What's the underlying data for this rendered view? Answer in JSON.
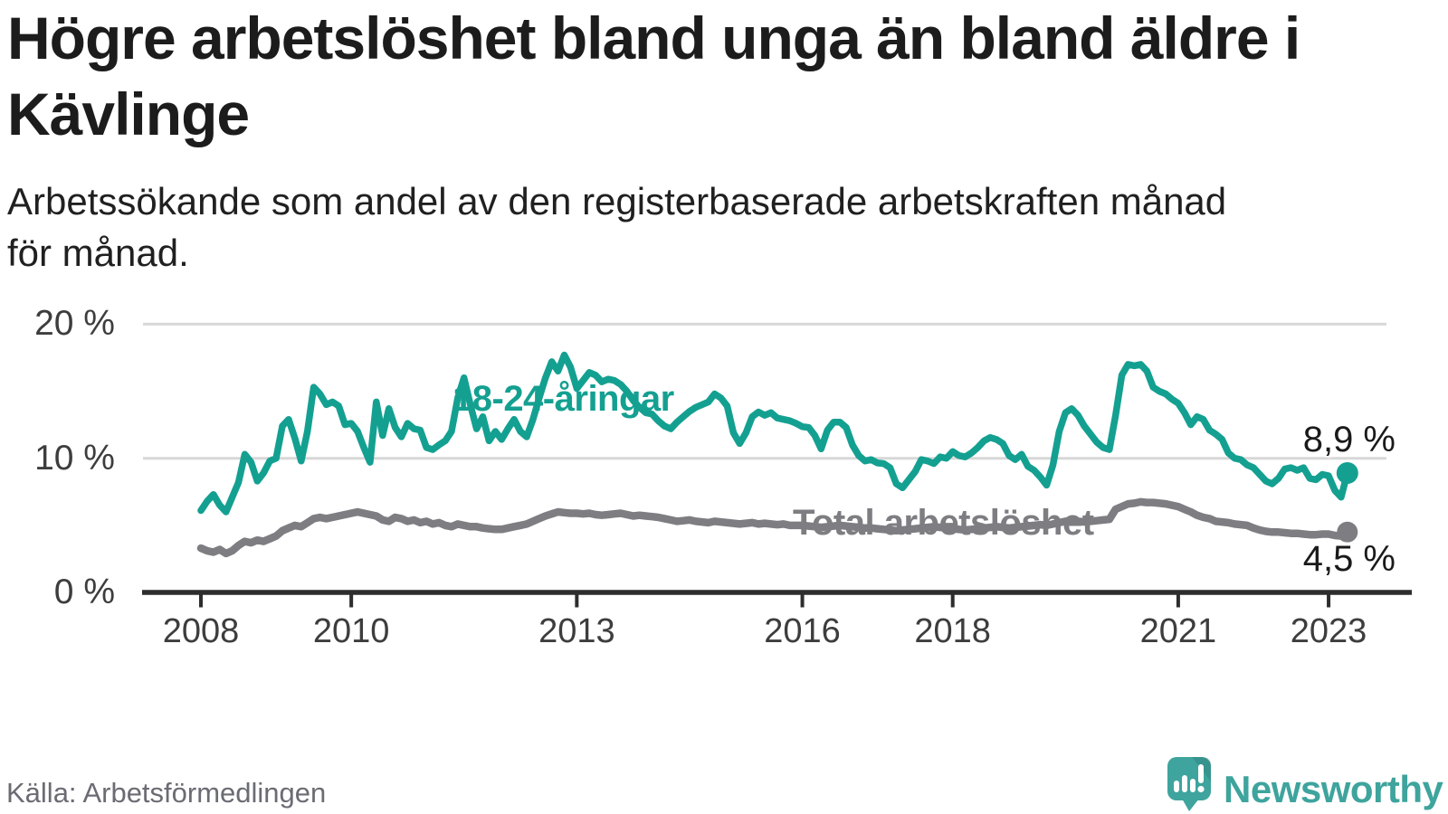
{
  "header": {
    "title_line1": "Högre arbetslöshet bland unga än bland äldre i",
    "title_line2": "Kävlinge",
    "subtitle_line1": "Arbetssökande som andel av den registerbaserade arbetskraften månad",
    "subtitle_line2": "för månad."
  },
  "chart_data": {
    "type": "line",
    "title": "Högre arbetslöshet bland unga än bland äldre i Kävlinge",
    "subtitle": "Arbetssökande som andel av den registerbaserade arbetskraften månad för månad.",
    "unit": "%",
    "x_start": "2008-01",
    "x_end": "2023-04",
    "points_per_year": 12,
    "n_points": 184,
    "grid": "horizontal",
    "legend_position": "inline-labels",
    "y_axis": {
      "ticks": [
        "20 %",
        "10 %",
        "0 %"
      ],
      "tick_values": [
        20,
        10,
        0
      ],
      "ylim": [
        0,
        21.5
      ]
    },
    "x_axis": {
      "tick_years": [
        2008,
        2010,
        2013,
        2016,
        2018,
        2021,
        2023
      ],
      "tick_labels": [
        "2008",
        "2010",
        "2013",
        "2016",
        "2018",
        "2021",
        "2023"
      ]
    },
    "series": [
      {
        "name": "18-24-åringar",
        "color": "#14a091",
        "end_label": "8,9 %",
        "end_value": 8.9,
        "values": [
          6.1,
          6.8,
          7.3,
          6.5,
          6.0,
          7.1,
          8.2,
          10.3,
          9.7,
          8.3,
          8.9,
          9.8,
          10.0,
          12.4,
          12.9,
          11.5,
          9.8,
          12.0,
          15.3,
          14.8,
          14.0,
          14.2,
          13.9,
          12.5,
          12.6,
          12.0,
          10.8,
          9.7,
          14.2,
          11.7,
          13.7,
          12.3,
          11.6,
          12.6,
          12.2,
          12.1,
          10.8,
          10.65,
          11.0,
          11.3,
          12.0,
          14.5,
          16.0,
          14.0,
          12.2,
          13.1,
          11.3,
          12.0,
          11.4,
          12.2,
          12.9,
          12.0,
          11.6,
          12.9,
          14.5,
          16.0,
          17.2,
          16.5,
          17.7,
          16.8,
          15.2,
          15.8,
          16.4,
          16.2,
          15.7,
          15.9,
          15.8,
          15.5,
          15.0,
          14.3,
          13.8,
          13.4,
          13.3,
          12.8,
          12.4,
          12.2,
          12.7,
          13.1,
          13.5,
          13.8,
          14.0,
          14.2,
          14.8,
          14.5,
          13.9,
          11.9,
          11.1,
          11.9,
          13.1,
          13.45,
          13.2,
          13.4,
          13.0,
          12.9,
          12.8,
          12.6,
          12.35,
          12.3,
          11.7,
          10.7,
          12.1,
          12.7,
          12.7,
          12.3,
          11.0,
          10.2,
          9.8,
          9.9,
          9.65,
          9.6,
          9.3,
          8.1,
          7.8,
          8.4,
          9.0,
          9.9,
          9.8,
          9.6,
          10.1,
          10.0,
          10.5,
          10.2,
          10.1,
          10.4,
          10.8,
          11.3,
          11.55,
          11.4,
          11.1,
          10.2,
          9.9,
          10.3,
          9.4,
          9.1,
          8.6,
          8.0,
          9.5,
          12.0,
          13.4,
          13.7,
          13.2,
          12.4,
          11.8,
          11.2,
          10.8,
          10.65,
          13.2,
          16.2,
          17.0,
          16.9,
          17.0,
          16.5,
          15.3,
          15.0,
          14.8,
          14.4,
          14.1,
          13.4,
          12.5,
          13.1,
          12.9,
          12.1,
          11.8,
          11.4,
          10.4,
          10.0,
          9.9,
          9.5,
          9.3,
          8.8,
          8.3,
          8.1,
          8.5,
          9.2,
          9.3,
          9.1,
          9.3,
          8.5,
          8.4,
          8.8,
          8.7,
          7.6,
          7.1,
          8.9
        ]
      },
      {
        "name": "Total arbetslöshet",
        "color": "#7d7d82",
        "end_label": "4,5 %",
        "end_value": 4.5,
        "values": [
          3.3,
          3.1,
          3.0,
          3.2,
          2.9,
          3.1,
          3.5,
          3.8,
          3.7,
          3.9,
          3.8,
          4.0,
          4.2,
          4.6,
          4.8,
          5.0,
          4.9,
          5.2,
          5.5,
          5.6,
          5.5,
          5.6,
          5.7,
          5.8,
          5.9,
          6.0,
          5.9,
          5.8,
          5.7,
          5.4,
          5.3,
          5.6,
          5.5,
          5.3,
          5.4,
          5.2,
          5.3,
          5.1,
          5.2,
          5.0,
          4.9,
          5.1,
          5.0,
          4.9,
          4.9,
          4.8,
          4.75,
          4.7,
          4.7,
          4.8,
          4.9,
          5.0,
          5.1,
          5.3,
          5.5,
          5.7,
          5.85,
          6.0,
          5.95,
          5.9,
          5.9,
          5.85,
          5.9,
          5.8,
          5.75,
          5.8,
          5.85,
          5.9,
          5.8,
          5.7,
          5.75,
          5.7,
          5.65,
          5.6,
          5.5,
          5.4,
          5.3,
          5.35,
          5.4,
          5.3,
          5.25,
          5.2,
          5.3,
          5.25,
          5.2,
          5.15,
          5.1,
          5.15,
          5.2,
          5.1,
          5.15,
          5.1,
          5.05,
          5.1,
          5.0,
          5.0,
          5.0,
          4.95,
          4.9,
          4.85,
          4.9,
          4.95,
          5.0,
          4.95,
          4.9,
          4.85,
          4.8,
          4.8,
          4.75,
          4.7,
          4.65,
          4.6,
          4.65,
          4.7,
          4.75,
          4.8,
          4.85,
          4.9,
          4.85,
          4.8,
          4.75,
          4.7,
          4.65,
          4.7,
          4.75,
          4.8,
          4.85,
          4.9,
          4.85,
          4.8,
          4.85,
          4.9,
          4.95,
          5.0,
          5.05,
          5.0,
          5.1,
          5.2,
          5.3,
          5.35,
          5.3,
          5.25,
          5.3,
          5.35,
          5.4,
          5.45,
          6.2,
          6.4,
          6.6,
          6.65,
          6.75,
          6.7,
          6.7,
          6.65,
          6.6,
          6.5,
          6.4,
          6.2,
          6.0,
          5.75,
          5.6,
          5.5,
          5.3,
          5.25,
          5.2,
          5.1,
          5.05,
          5.0,
          4.8,
          4.65,
          4.55,
          4.5,
          4.5,
          4.45,
          4.4,
          4.4,
          4.35,
          4.3,
          4.3,
          4.35,
          4.35,
          4.25,
          4.2,
          4.5
        ]
      }
    ]
  },
  "footer": {
    "source": "Källa: Arbetsförmedlingen",
    "brand": "Newsworthy"
  },
  "colors": {
    "accent_teal": "#14a091",
    "series_gray": "#7d7d82",
    "logo_teal": "#3ea49d",
    "text_dark": "#1c1c1c",
    "text_gray": "#6b6b73",
    "axis_text": "#3d3d3d",
    "gridline": "#d8d8d8",
    "axis_line": "#2d2d2d"
  },
  "icons": {
    "brand_icon": "newsworthy-speech-bubble-bar-chart-icon"
  }
}
